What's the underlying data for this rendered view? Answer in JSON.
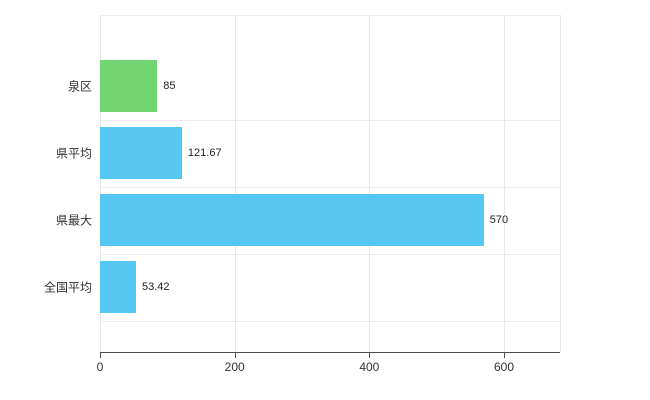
{
  "chart_data": {
    "type": "bar",
    "orientation": "horizontal",
    "title": "",
    "categories": [
      "泉区",
      "県平均",
      "県最大",
      "全国平均"
    ],
    "values": [
      85,
      121.67,
      570,
      53.42
    ],
    "value_labels": [
      "85",
      "121.67",
      "570",
      "53.42"
    ],
    "series": [
      {
        "name": "",
        "values": [
          85,
          121.67,
          570,
          53.42
        ]
      }
    ],
    "bar_colors": [
      "#72d572",
      "#55c7f2",
      "#55c7f2",
      "#55c7f2"
    ],
    "x_ticks": [
      0,
      200,
      400,
      600
    ],
    "x_tick_labels": [
      "0",
      "200",
      "400",
      "600"
    ],
    "xlim": [
      0,
      683
    ],
    "ylabel": "",
    "xlabel": "",
    "legend": null,
    "grid": true,
    "grid_orientation": "vertical-and-horizontal",
    "value_labels_position": "outside-end"
  },
  "colors": {
    "green_bar": "#72d572",
    "blue_bar": "#55c7f2",
    "gridline": "#e8e8e8",
    "axis": "#4d4d4d",
    "text": "#333333",
    "background": "#ffffff"
  }
}
